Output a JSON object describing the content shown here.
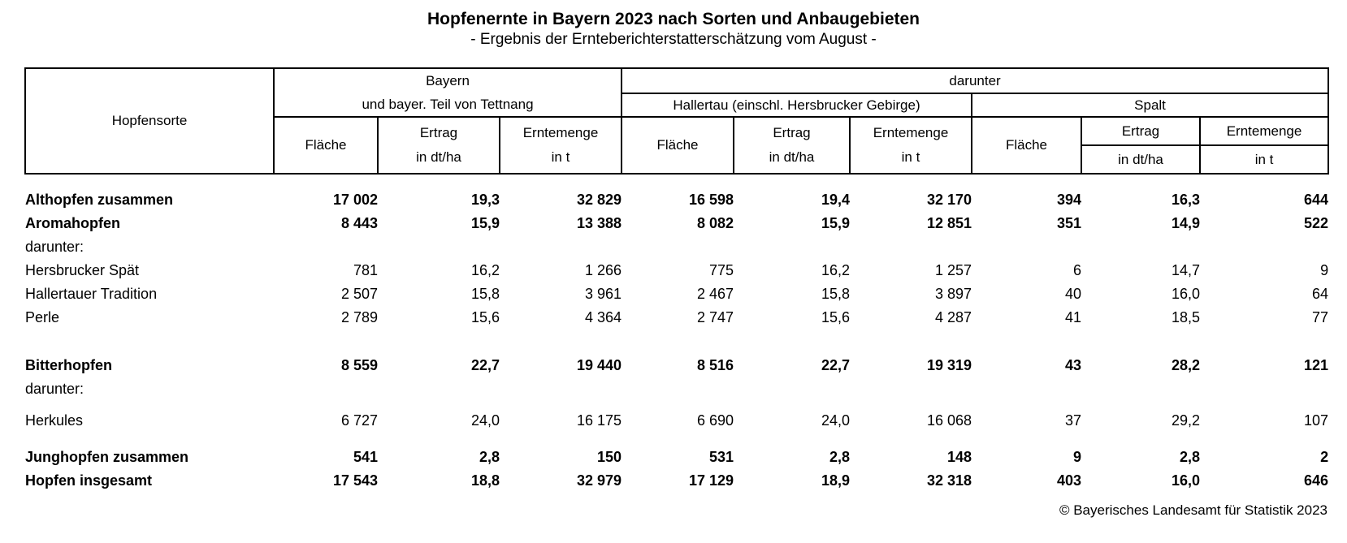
{
  "page": {
    "title": "Hopfenernte in Bayern 2023 nach Sorten und Anbaugebieten",
    "subtitle": "- Ergebnis der Ernteberichterstatterschätzung vom August -",
    "copyright": "© Bayerisches Landesamt für Statistik 2023"
  },
  "table": {
    "corner_header": "Hopfensorte",
    "group_bayern": {
      "line1": "Bayern",
      "line2": "und bayer. Teil von Tettnang"
    },
    "group_darunter": "darunter",
    "subgroup_hallertau": "Hallertau (einschl. Hersbrucker Gebirge)",
    "subgroup_spalt": "Spalt",
    "col_flaeche": "Fläche",
    "col_ertrag": "Ertrag",
    "col_ertrag_unit": "in dt/ha",
    "col_erntemenge": "Erntemenge",
    "col_erntemenge_unit": "in t",
    "rows": [
      {
        "label": "Althopfen zusammen",
        "bold": true,
        "values": [
          "17 002",
          "19,3",
          "32 829",
          "16 598",
          "19,4",
          "32 170",
          "394",
          "16,3",
          "644"
        ]
      },
      {
        "label": "Aromahopfen",
        "bold": true,
        "values": [
          "8 443",
          "15,9",
          "13 388",
          "8 082",
          "15,9",
          "12 851",
          "351",
          "14,9",
          "522"
        ]
      },
      {
        "label": "darunter:",
        "bold": false,
        "values": [
          "",
          "",
          "",
          "",
          "",
          "",
          "",
          "",
          ""
        ]
      },
      {
        "label": "Hersbrucker Spät",
        "bold": false,
        "values": [
          "781",
          "16,2",
          "1 266",
          "775",
          "16,2",
          "1 257",
          "6",
          "14,7",
          "9"
        ]
      },
      {
        "label": "Hallertauer Tradition",
        "bold": false,
        "values": [
          "2 507",
          "15,8",
          "3 961",
          "2 467",
          "15,8",
          "3 897",
          "40",
          "16,0",
          "64"
        ]
      },
      {
        "label": "Perle",
        "bold": false,
        "values": [
          "2 789",
          "15,6",
          "4 364",
          "2 747",
          "15,6",
          "4 287",
          "41",
          "18,5",
          "77"
        ],
        "gap_after": 30
      },
      {
        "label": "Bitterhopfen",
        "bold": true,
        "values": [
          "8 559",
          "22,7",
          "19 440",
          "8 516",
          "22,7",
          "19 319",
          "43",
          "28,2",
          "121"
        ]
      },
      {
        "label": "darunter:",
        "bold": false,
        "values": [
          "",
          "",
          "",
          "",
          "",
          "",
          "",
          "",
          ""
        ],
        "gap_after": 10
      },
      {
        "label": "Herkules",
        "bold": false,
        "values": [
          "6 727",
          "24,0",
          "16 175",
          "6 690",
          "24,0",
          "16 068",
          "37",
          "29,2",
          "107"
        ],
        "gap_after": 16
      },
      {
        "label": "Junghopfen zusammen",
        "bold": true,
        "values": [
          "541",
          "2,8",
          "150",
          "531",
          "2,8",
          "148",
          "9",
          "2,8",
          "2"
        ]
      },
      {
        "label": "Hopfen insgesamt",
        "bold": true,
        "values": [
          "17 543",
          "18,8",
          "32 979",
          "17 129",
          "18,9",
          "32 318",
          "403",
          "16,0",
          "646"
        ]
      }
    ]
  }
}
